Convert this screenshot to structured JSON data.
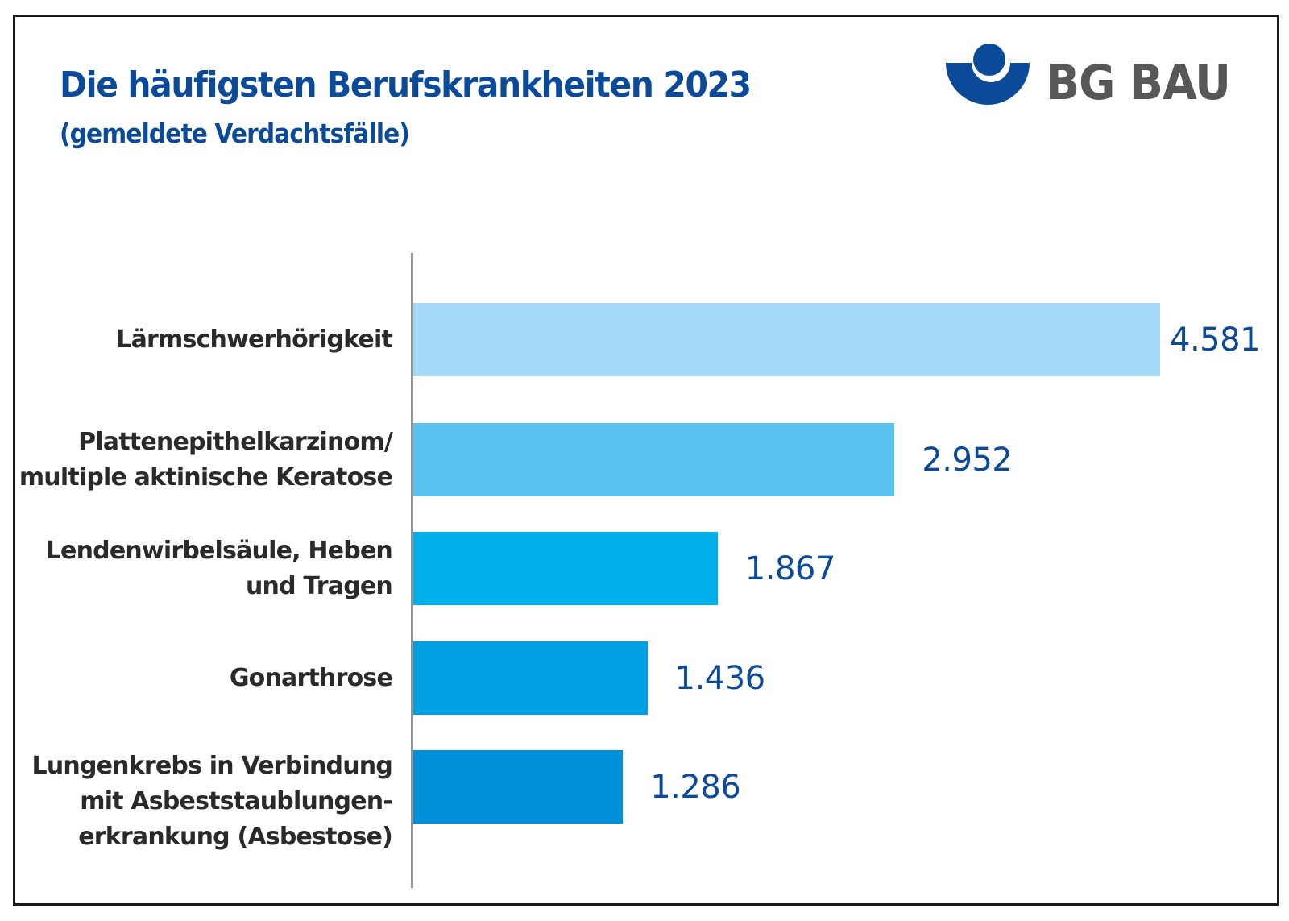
{
  "header": {
    "title": "Die häufigsten Berufskrankheiten 2023",
    "subtitle": "(gemeldete Verdachtsfälle)"
  },
  "logo": {
    "text": "BG BAU",
    "icon": "bg-bau-emblem-icon",
    "colors": {
      "emblem": "#0b4a99",
      "text": "#575757"
    }
  },
  "chart_data": {
    "type": "bar",
    "orientation": "horizontal",
    "title": "Die häufigsten Berufskrankheiten 2023",
    "subtitle": "(gemeldete Verdachtsfälle)",
    "xlabel": "",
    "ylabel": "",
    "xlim": [
      0,
      4581
    ],
    "grid": false,
    "legend": "none",
    "categories": [
      [
        "Lärmschwerhörigkeit"
      ],
      [
        "Plattenepithelkarzinom/",
        "multiple aktinische Keratose"
      ],
      [
        "Lendenwirbelsäule, Heben",
        "und Tragen"
      ],
      [
        "Gonarthrose"
      ],
      [
        "Lungenkrebs in Verbindung",
        "mit Asbeststaublungen-",
        "erkrankung (Asbestose)"
      ]
    ],
    "values": [
      4581,
      2952,
      1867,
      1436,
      1286
    ],
    "value_labels": [
      "4.581",
      "2.952",
      "1.867",
      "1.436",
      "1.286"
    ],
    "colors": [
      "#a3d8f6",
      "#5bc3f1",
      "#00b0eb",
      "#009fe3",
      "#0090d9"
    ]
  },
  "colors": {
    "title": "#0b4a99",
    "value_label": "#0b4a99",
    "category_label": "#2a2a2a",
    "axis": "#999999",
    "frame": "#1a1a1a"
  }
}
